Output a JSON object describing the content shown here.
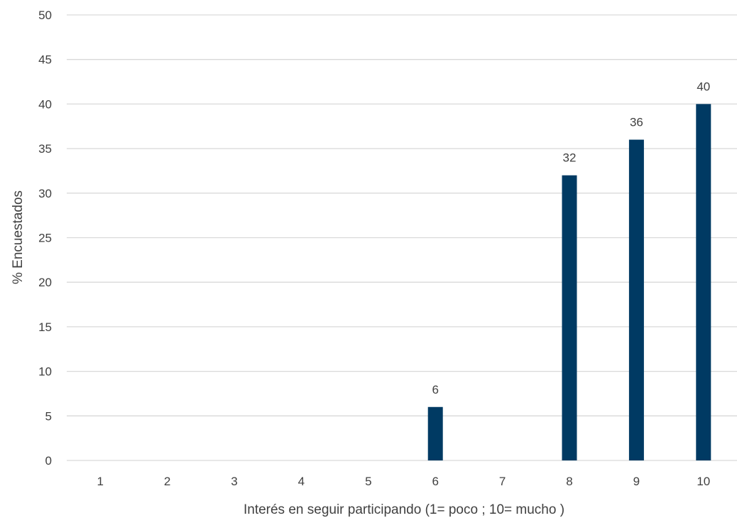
{
  "chart_data": {
    "type": "bar",
    "categories": [
      "1",
      "2",
      "3",
      "4",
      "5",
      "6",
      "7",
      "8",
      "9",
      "10"
    ],
    "values": [
      0,
      0,
      0,
      0,
      0,
      6,
      0,
      32,
      36,
      40
    ],
    "data_labels": [
      null,
      null,
      null,
      null,
      null,
      "6",
      null,
      "32",
      "36",
      "40"
    ],
    "title": "",
    "xlabel": "Interés en seguir participando (1= poco ; 10= mucho )",
    "ylabel": "% Encuestados",
    "ylim": [
      0,
      50
    ],
    "yticks": [
      "0",
      "5",
      "10",
      "15",
      "20",
      "25",
      "30",
      "35",
      "40",
      "45",
      "50"
    ],
    "grid": true,
    "legend": "none",
    "bar_color": "#003a63"
  }
}
